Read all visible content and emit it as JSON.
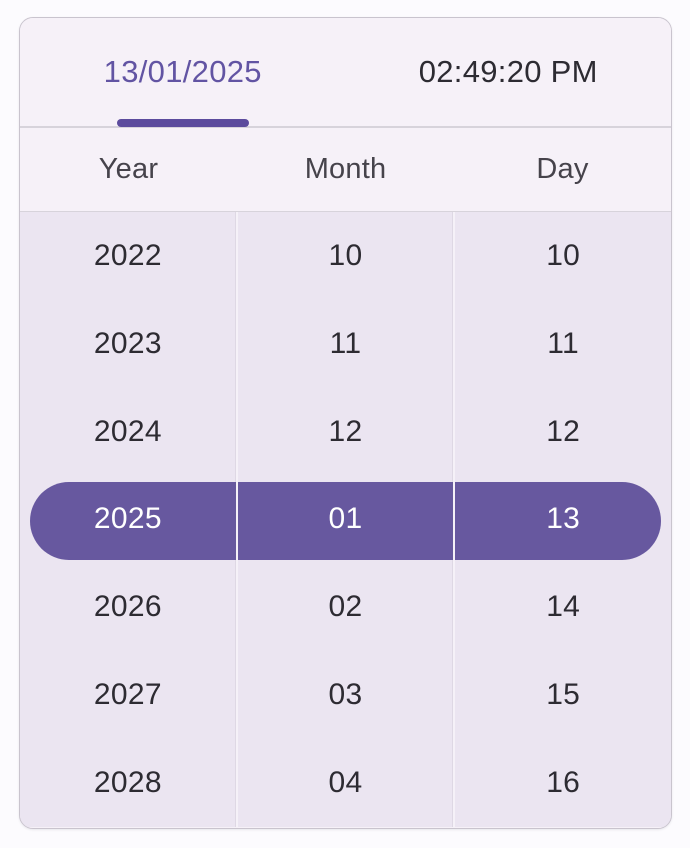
{
  "picker": {
    "tabs": {
      "date_label": "13/01/2025",
      "time_label": "02:49:20 PM"
    },
    "columns": [
      {
        "header": "Year",
        "values": [
          "2022",
          "2023",
          "2024",
          "2025",
          "2026",
          "2027",
          "2028"
        ],
        "selected_index": 3,
        "selected_value": "2025"
      },
      {
        "header": "Month",
        "values": [
          "10",
          "11",
          "12",
          "01",
          "02",
          "03",
          "04"
        ],
        "selected_index": 3,
        "selected_value": "01"
      },
      {
        "header": "Day",
        "values": [
          "10",
          "11",
          "12",
          "13",
          "14",
          "15",
          "16"
        ],
        "selected_index": 3,
        "selected_value": "13"
      }
    ],
    "colors": {
      "primary": "#5c4b9d",
      "active_tab_text": "#6254a3",
      "selected_pill": "#67589f",
      "body_background": "#ebe5f1",
      "header_background": "#f6f1f8",
      "text": "#2d2b32"
    }
  }
}
